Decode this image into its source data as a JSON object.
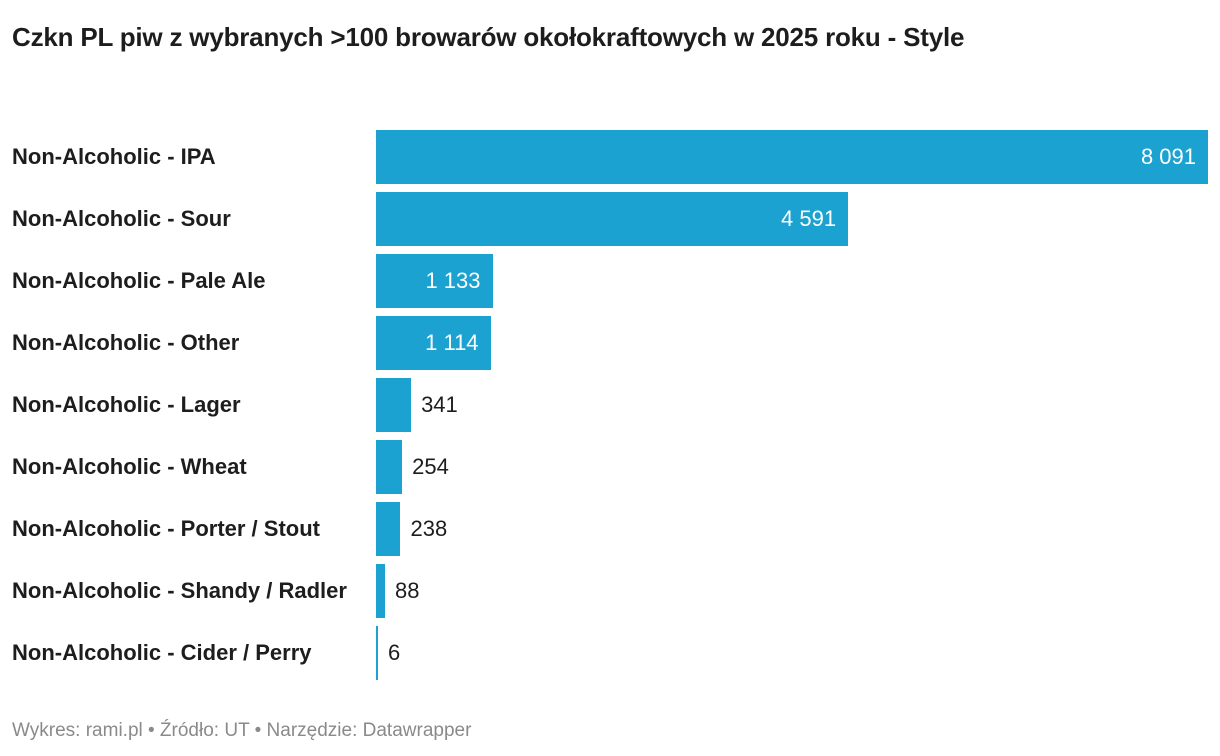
{
  "chart_data": {
    "type": "bar",
    "orientation": "horizontal",
    "title": "Czkn PL piw z wybranych >100 browarów okołokraftowych w 2025 roku - Style",
    "categories": [
      "Non-Alcoholic - IPA",
      "Non-Alcoholic - Sour",
      "Non-Alcoholic - Pale Ale",
      "Non-Alcoholic - Other",
      "Non-Alcoholic - Lager",
      "Non-Alcoholic - Wheat",
      "Non-Alcoholic - Porter / Stout",
      "Non-Alcoholic - Shandy / Radler",
      "Non-Alcoholic - Cider / Perry"
    ],
    "values": [
      8091,
      4591,
      1133,
      1114,
      341,
      254,
      238,
      88,
      6
    ],
    "value_labels": [
      "8 091",
      "4 591",
      "1 133",
      "1 114",
      "341",
      "254",
      "238",
      "88",
      "6"
    ],
    "xlim": [
      0,
      8091
    ],
    "grid": false,
    "legend": "none",
    "bar_color": "#1ba2d0"
  },
  "footer": {
    "text": "Wykres: rami.pl • Źródło: UT • Narzędzie: Datawrapper"
  }
}
